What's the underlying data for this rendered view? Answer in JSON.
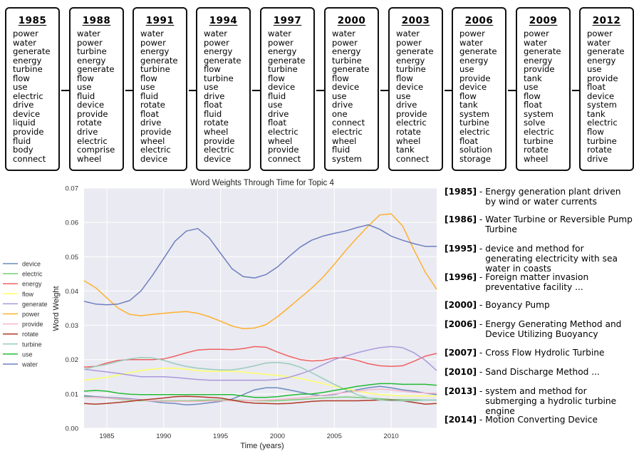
{
  "boxes": [
    {
      "year": "1985",
      "words": [
        "power",
        "water",
        "generate",
        "energy",
        "turbine",
        "flow",
        "use",
        "electric",
        "drive",
        "device",
        "liquid",
        "provide",
        "fluid",
        "body",
        "connect"
      ]
    },
    {
      "year": "1988",
      "words": [
        "water",
        "power",
        "turbine",
        "energy",
        "generate",
        "flow",
        "use",
        "fluid",
        "device",
        "provide",
        "rotate",
        "drive",
        "electric",
        "comprise",
        "wheel"
      ]
    },
    {
      "year": "1991",
      "words": [
        "water",
        "power",
        "energy",
        "generate",
        "turbine",
        "flow",
        "use",
        "fluid",
        "rotate",
        "float",
        "drive",
        "provide",
        "wheel",
        "electric",
        "device"
      ]
    },
    {
      "year": "1994",
      "words": [
        "water",
        "power",
        "energy",
        "generate",
        "flow",
        "turbine",
        "use",
        "drive",
        "float",
        "fluid",
        "rotate",
        "wheel",
        "provide",
        "electric",
        "device"
      ]
    },
    {
      "year": "1997",
      "words": [
        "water",
        "power",
        "energy",
        "generate",
        "turbine",
        "flow",
        "device",
        "fluid",
        "use",
        "drive",
        "float",
        "electric",
        "wheel",
        "provide",
        "connect"
      ]
    },
    {
      "year": "2000",
      "words": [
        "water",
        "power",
        "energy",
        "turbine",
        "generate",
        "flow",
        "device",
        "use",
        "drive",
        "one",
        "connect",
        "electric",
        "wheel",
        "fluid",
        "system"
      ]
    },
    {
      "year": "2003",
      "words": [
        "water",
        "power",
        "generate",
        "energy",
        "turbine",
        "flow",
        "device",
        "use",
        "drive",
        "provide",
        "electric",
        "rotate",
        "wheel",
        "tank",
        "connect"
      ]
    },
    {
      "year": "2006",
      "words": [
        "power",
        "water",
        "generate",
        "energy",
        "use",
        "provide",
        "device",
        "flow",
        "tank",
        "system",
        "turbine",
        "electric",
        "float",
        "solution",
        "storage"
      ]
    },
    {
      "year": "2009",
      "words": [
        "power",
        "water",
        "generate",
        "energy",
        "provide",
        "tank",
        "use",
        "flow",
        "float",
        "system",
        "solve",
        "electric",
        "turbine",
        "rotate",
        "wheel"
      ]
    },
    {
      "year": "2012",
      "words": [
        "power",
        "water",
        "generate",
        "energy",
        "use",
        "provide",
        "float",
        "device",
        "system",
        "tank",
        "electric",
        "flow",
        "turbine",
        "rotate",
        "drive"
      ]
    }
  ],
  "patents": [
    {
      "year": "[1985]",
      "text": "Energy generation plant driven by wind or water currents"
    },
    {
      "year": "[1986]",
      "text": "Water Turbine or Reversible Pump Turbine"
    },
    {
      "year": "[1995]",
      "text": "device and method for generating electricity with sea water in coasts"
    },
    {
      "year": "[1996]",
      "text": "Foreign matter invasion preventative facility ..."
    },
    {
      "year": "[2000]",
      "text": "Boyancy Pump"
    },
    {
      "year": "[2006]",
      "text": "Energy Generating Method and Device Utilizing Buoyancy"
    },
    {
      "year": "[2007]",
      "text": "Cross Flow Hydrolic Turbine"
    },
    {
      "year": "[2010]",
      "text": "Sand Discharge Method ..."
    },
    {
      "year": "[2013]",
      "text": "system and method for submerging a hydrolic turbine engine"
    },
    {
      "year": "[2014]",
      "text": "Motion Converting Device"
    }
  ],
  "patent_separator": " - ",
  "chart_data": {
    "type": "line",
    "title": "Word Weights Through Time for Topic 4",
    "xlabel": "Time (years)",
    "ylabel": "Word Weight",
    "xlim": [
      1983,
      2014
    ],
    "ylim": [
      0,
      0.07
    ],
    "xticks": [
      "1985",
      "1990",
      "1995",
      "2000",
      "2005",
      "2010"
    ],
    "yticks": [
      "0.00",
      "0.01",
      "0.02",
      "0.03",
      "0.04",
      "0.05",
      "0.06",
      "0.07"
    ],
    "grid": true,
    "legend_position": "left",
    "x": [
      1983,
      1984,
      1985,
      1986,
      1987,
      1988,
      1989,
      1990,
      1991,
      1992,
      1993,
      1994,
      1995,
      1996,
      1997,
      1998,
      1999,
      2000,
      2001,
      2002,
      2003,
      2004,
      2005,
      2006,
      2007,
      2008,
      2009,
      2010,
      2011,
      2012,
      2013,
      2014
    ],
    "series": [
      {
        "name": "device",
        "color": "#6b8bbf",
        "values": [
          0.0095,
          0.0092,
          0.009,
          0.0088,
          0.0086,
          0.0083,
          0.0078,
          0.0074,
          0.0072,
          0.0068,
          0.007,
          0.0074,
          0.0078,
          0.0085,
          0.0098,
          0.0112,
          0.0118,
          0.0118,
          0.0112,
          0.0105,
          0.0098,
          0.0095,
          0.0098,
          0.0106,
          0.0112,
          0.0118,
          0.0122,
          0.0118,
          0.0112,
          0.0108,
          0.0102,
          0.0098
        ]
      },
      {
        "name": "electric",
        "color": "#77cc77",
        "values": [
          0.0092,
          0.009,
          0.0088,
          0.0085,
          0.0082,
          0.008,
          0.008,
          0.008,
          0.008,
          0.008,
          0.0081,
          0.0082,
          0.0082,
          0.0082,
          0.0081,
          0.008,
          0.008,
          0.008,
          0.0082,
          0.0084,
          0.0086,
          0.0088,
          0.009,
          0.0091,
          0.009,
          0.0088,
          0.0086,
          0.0084,
          0.0083,
          0.0083,
          0.0082,
          0.0082
        ]
      },
      {
        "name": "energy",
        "color": "#f06060",
        "values": [
          0.0178,
          0.018,
          0.019,
          0.0198,
          0.02,
          0.02,
          0.02,
          0.0202,
          0.021,
          0.022,
          0.0228,
          0.023,
          0.023,
          0.0229,
          0.0232,
          0.0238,
          0.0236,
          0.0222,
          0.021,
          0.02,
          0.0196,
          0.0198,
          0.0205,
          0.0205,
          0.0198,
          0.0188,
          0.0182,
          0.018,
          0.0182,
          0.0195,
          0.021,
          0.0218
        ]
      },
      {
        "name": "flow",
        "color": "#ffff66",
        "values": [
          0.014,
          0.0144,
          0.0148,
          0.0155,
          0.0162,
          0.0168,
          0.0172,
          0.0175,
          0.0175,
          0.0172,
          0.0168,
          0.0166,
          0.0166,
          0.0166,
          0.0164,
          0.016,
          0.0157,
          0.0154,
          0.015,
          0.0145,
          0.0138,
          0.013,
          0.0122,
          0.0115,
          0.0108,
          0.0102,
          0.0098,
          0.0096,
          0.0094,
          0.0094,
          0.0094,
          0.0094
        ]
      },
      {
        "name": "generate",
        "color": "#aa99dd",
        "values": [
          0.0172,
          0.0168,
          0.0164,
          0.016,
          0.0155,
          0.015,
          0.015,
          0.015,
          0.0148,
          0.0145,
          0.0142,
          0.014,
          0.014,
          0.014,
          0.014,
          0.014,
          0.014,
          0.0142,
          0.0148,
          0.0158,
          0.017,
          0.0185,
          0.02,
          0.021,
          0.022,
          0.0228,
          0.0235,
          0.0238,
          0.0235,
          0.022,
          0.0198,
          0.0168
        ]
      },
      {
        "name": "power",
        "color": "#ffb02e",
        "values": [
          0.043,
          0.041,
          0.038,
          0.035,
          0.0332,
          0.0328,
          0.0332,
          0.0335,
          0.0338,
          0.034,
          0.0335,
          0.0325,
          0.0312,
          0.0298,
          0.029,
          0.0292,
          0.0302,
          0.0325,
          0.0352,
          0.038,
          0.0408,
          0.044,
          0.0478,
          0.0518,
          0.0555,
          0.059,
          0.0622,
          0.0625,
          0.059,
          0.052,
          0.0455,
          0.0405
        ]
      },
      {
        "name": "provide",
        "color": "#f7b5c8",
        "values": [
          0.009,
          0.009,
          0.0088,
          0.0086,
          0.0084,
          0.0082,
          0.008,
          0.0078,
          0.0078,
          0.0078,
          0.0078,
          0.0079,
          0.008,
          0.008,
          0.008,
          0.0081,
          0.0082,
          0.0084,
          0.0086,
          0.0088,
          0.0092,
          0.0096,
          0.01,
          0.0104,
          0.0108,
          0.0112,
          0.0114,
          0.0112,
          0.0108,
          0.0104,
          0.0102,
          0.0102
        ]
      },
      {
        "name": "rotate",
        "color": "#b03a26",
        "values": [
          0.0072,
          0.007,
          0.0072,
          0.0075,
          0.0078,
          0.0082,
          0.0085,
          0.0088,
          0.0092,
          0.0093,
          0.0092,
          0.009,
          0.0088,
          0.0082,
          0.0076,
          0.0073,
          0.0072,
          0.0071,
          0.0072,
          0.0075,
          0.0078,
          0.008,
          0.008,
          0.008,
          0.008,
          0.0081,
          0.0082,
          0.0082,
          0.008,
          0.0075,
          0.007,
          0.0072
        ]
      },
      {
        "name": "turbine",
        "color": "#99ccbb",
        "values": [
          0.0172,
          0.018,
          0.0186,
          0.0195,
          0.0202,
          0.0206,
          0.0205,
          0.0198,
          0.0188,
          0.018,
          0.0175,
          0.0172,
          0.017,
          0.017,
          0.0175,
          0.0182,
          0.019,
          0.0192,
          0.0188,
          0.0178,
          0.0162,
          0.0145,
          0.0128,
          0.0112,
          0.0098,
          0.0088,
          0.0082,
          0.008,
          0.008,
          0.008,
          0.0082,
          0.0082
        ]
      },
      {
        "name": "use",
        "color": "#22bb33",
        "values": [
          0.0108,
          0.011,
          0.0108,
          0.0102,
          0.0099,
          0.0098,
          0.0098,
          0.0098,
          0.0098,
          0.0098,
          0.0098,
          0.0098,
          0.0098,
          0.0098,
          0.0094,
          0.009,
          0.009,
          0.0092,
          0.0096,
          0.0099,
          0.01,
          0.0104,
          0.011,
          0.0116,
          0.0122,
          0.0126,
          0.013,
          0.013,
          0.0128,
          0.0128,
          0.0128,
          0.0125
        ]
      },
      {
        "name": "water",
        "color": "#6e7fbf",
        "values": [
          0.037,
          0.0362,
          0.036,
          0.0362,
          0.0372,
          0.04,
          0.0445,
          0.0495,
          0.0545,
          0.0575,
          0.0582,
          0.0555,
          0.051,
          0.0465,
          0.0442,
          0.0438,
          0.0448,
          0.047,
          0.05,
          0.0528,
          0.0548,
          0.056,
          0.0568,
          0.0575,
          0.0585,
          0.0593,
          0.058,
          0.056,
          0.0548,
          0.0538,
          0.053,
          0.053
        ]
      }
    ]
  }
}
